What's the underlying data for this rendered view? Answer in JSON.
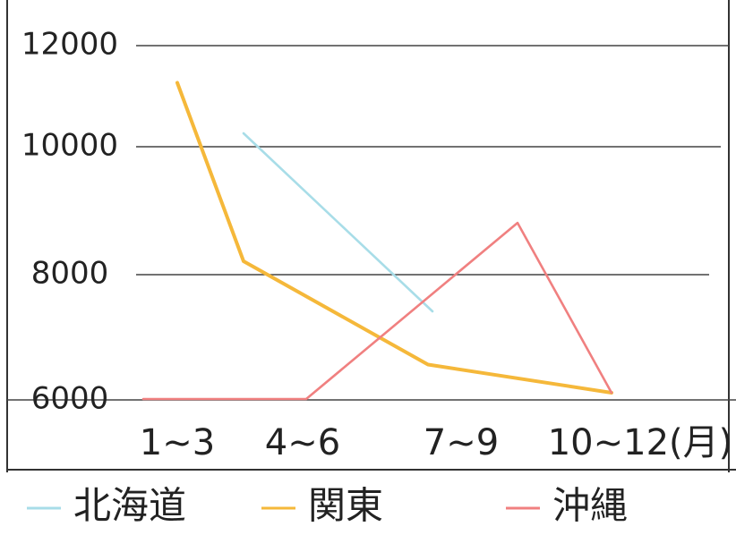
{
  "chart_data": {
    "type": "line",
    "title": "",
    "xlabel": "",
    "ylabel": "",
    "categories": [
      "1~3",
      "4~6",
      "7~9",
      "10~12(月)"
    ],
    "y_ticks": [
      "12000",
      "10000",
      "8000",
      "6000"
    ],
    "ylim": [
      6000,
      12000
    ],
    "grid": true,
    "legend_position": "bottom",
    "series": [
      {
        "name": "北海道",
        "color": "#a8dde8",
        "values": [
          null,
          10000,
          7200,
          null
        ]
      },
      {
        "name": "関東",
        "color": "#f5b83a",
        "values": [
          11000,
          8000,
          6350,
          5900
        ]
      },
      {
        "name": "沖縄",
        "color": "#f08080",
        "values": [
          5800,
          5800,
          8600,
          5900
        ]
      }
    ]
  }
}
